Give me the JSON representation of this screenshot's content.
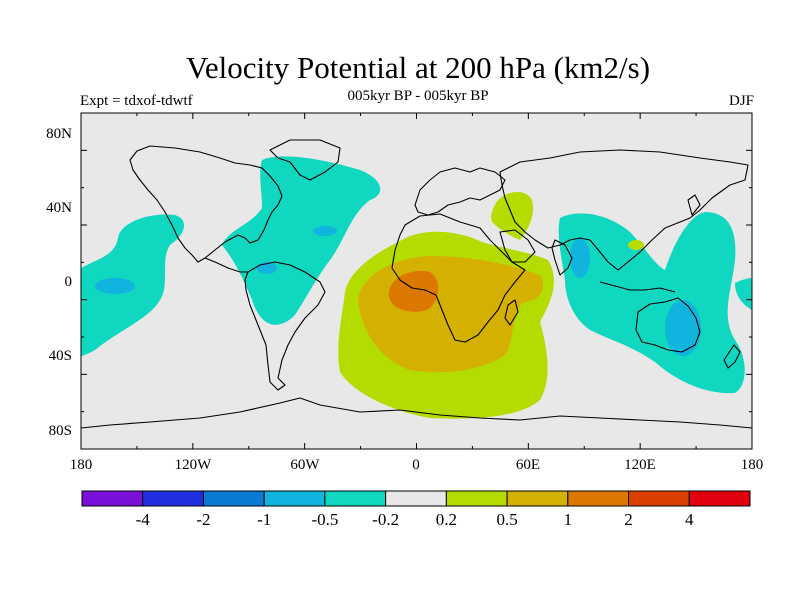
{
  "title": "Velocity Potential at 200 hPa (km2/s)",
  "subtitle": "005kyr BP - 005kyr BP",
  "left_label": "Expt = tdxof-tdwtf",
  "right_label": "DJF",
  "lat_ticks": [
    "80N",
    "40N",
    "0",
    "40S",
    "80S"
  ],
  "lon_ticks": [
    "180",
    "120W",
    "60W",
    "0",
    "60E",
    "120E",
    "180"
  ],
  "colorbar": {
    "colors": [
      "#7a10d8",
      "#2030e0",
      "#0a7ad4",
      "#10b4dc",
      "#10d8c0",
      "#e8e8e8",
      "#b4dc00",
      "#d4b000",
      "#dc7800",
      "#dc4000",
      "#e00010"
    ],
    "labels": [
      "-4",
      "-2",
      "-1",
      "-0.5",
      "-0.2",
      "0.2",
      "0.5",
      "1",
      "2",
      "4"
    ]
  },
  "colors": {
    "land_ocean": "#e8e8e8",
    "neg1": "#10d8c0",
    "neg2": "#10b4dc",
    "pos1": "#b4dc00",
    "pos2": "#d4b000",
    "pos3": "#dc7800"
  }
}
